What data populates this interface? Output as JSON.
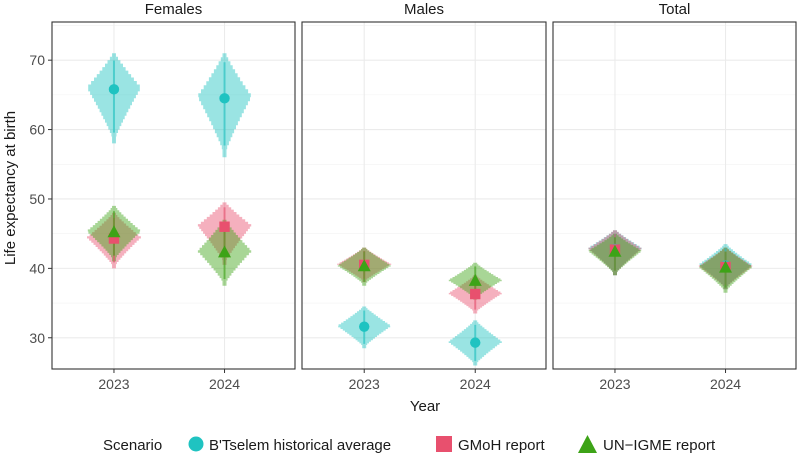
{
  "chart_data": {
    "type": "violin-dot",
    "ylabel": "Life expectancy at birth",
    "xlabel": "Year",
    "ylim": [
      25.5,
      75.5
    ],
    "yticks": [
      30,
      40,
      50,
      60,
      70
    ],
    "categories": [
      "2023",
      "2024"
    ],
    "facets": [
      "Females",
      "Males",
      "Total"
    ],
    "legend": {
      "title": "Scenario",
      "position": "bottom",
      "items": [
        {
          "name": "B'Tselem historical average",
          "shape": "circle",
          "color": "#1FC3C1"
        },
        {
          "name": "GMoH report",
          "shape": "square",
          "color": "#E8506E"
        },
        {
          "name": "UN−IGME report",
          "shape": "triangle",
          "color": "#3DA317"
        }
      ]
    },
    "series": [
      {
        "scenario": "B'Tselem historical average",
        "facet": "Females",
        "values": [
          65.8,
          64.5
        ],
        "low": [
          58.0,
          56.0
        ],
        "high": [
          71.0,
          71.0
        ]
      },
      {
        "scenario": "GMoH report",
        "facet": "Females",
        "values": [
          44.3,
          46.0
        ],
        "low": [
          40.0,
          40.5
        ],
        "high": [
          48.0,
          49.5
        ]
      },
      {
        "scenario": "UN−IGME report",
        "facet": "Females",
        "values": [
          45.2,
          42.3
        ],
        "low": [
          41.0,
          37.5
        ],
        "high": [
          49.0,
          47.0
        ]
      },
      {
        "scenario": "B'Tselem historical average",
        "facet": "Males",
        "values": [
          31.6,
          29.3
        ],
        "low": [
          28.5,
          26.0
        ],
        "high": [
          34.5,
          32.5
        ]
      },
      {
        "scenario": "GMoH report",
        "facet": "Males",
        "values": [
          40.5,
          36.3
        ],
        "low": [
          38.0,
          33.5
        ],
        "high": [
          43.0,
          39.0
        ]
      },
      {
        "scenario": "UN−IGME report",
        "facet": "Males",
        "values": [
          40.3,
          38.2
        ],
        "low": [
          37.5,
          35.5
        ],
        "high": [
          43.0,
          40.8
        ]
      },
      {
        "scenario": "B'Tselem historical average",
        "facet": "Total",
        "values": [
          42.8,
          40.4
        ],
        "low": [
          39.0,
          37.0
        ],
        "high": [
          45.5,
          43.5
        ]
      },
      {
        "scenario": "GMoH report",
        "facet": "Total",
        "values": [
          42.7,
          40.2
        ],
        "low": [
          39.0,
          37.0
        ],
        "high": [
          45.5,
          43.0
        ]
      },
      {
        "scenario": "UN−IGME report",
        "facet": "Total",
        "values": [
          42.4,
          40.1
        ],
        "low": [
          39.0,
          36.5
        ],
        "high": [
          45.0,
          43.0
        ]
      }
    ]
  }
}
